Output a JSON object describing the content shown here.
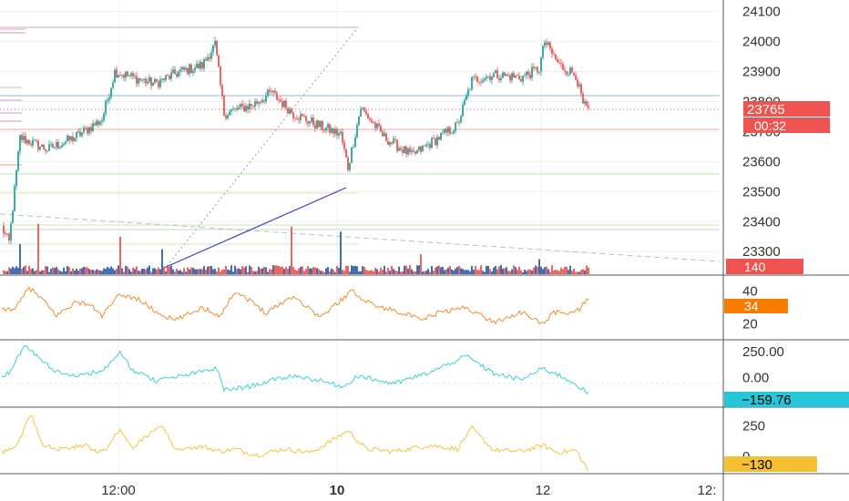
{
  "colors": {
    "up": "#26a69a",
    "down": "#ef5350",
    "vol_up": "#2f5ea8",
    "vol_down": "#ef5350",
    "rsi": "#f08c2e",
    "cci": "#3ccfd8",
    "osc3": "#f6c23e",
    "blue_line": "#3a3fc4",
    "badge_red": "#ef5350",
    "badge_orange": "#f57c00",
    "badge_cyan": "#26c6da",
    "badge_yellow": "#f4c032"
  },
  "chart_data": [
    {
      "type": "candlestick",
      "name": "price",
      "y_ticks": [
        "24100",
        "24000",
        "23900",
        "23800",
        "23700",
        "23600",
        "23500",
        "23400",
        "23300"
      ],
      "ylim": [
        23240,
        24120
      ],
      "x_ticks": [
        "12:00",
        "10",
        "12",
        "12:"
      ],
      "last_price_label": "23765",
      "countdown_label": "00:32",
      "price_path_anchors": [
        [
          0,
          23380
        ],
        [
          4,
          23330
        ],
        [
          10,
          23680
        ],
        [
          25,
          23640
        ],
        [
          40,
          23680
        ],
        [
          55,
          23740
        ],
        [
          62,
          23900
        ],
        [
          72,
          23880
        ],
        [
          84,
          23860
        ],
        [
          98,
          23900
        ],
        [
          110,
          23920
        ],
        [
          117,
          23990
        ],
        [
          122,
          23760
        ],
        [
          138,
          23790
        ],
        [
          148,
          23830
        ],
        [
          160,
          23760
        ],
        [
          174,
          23720
        ],
        [
          186,
          23690
        ],
        [
          190,
          23580
        ],
        [
          197,
          23780
        ],
        [
          210,
          23680
        ],
        [
          225,
          23620
        ],
        [
          240,
          23680
        ],
        [
          250,
          23720
        ],
        [
          258,
          23870
        ],
        [
          270,
          23890
        ],
        [
          285,
          23880
        ],
        [
          295,
          23910
        ],
        [
          298,
          24000
        ],
        [
          306,
          23920
        ],
        [
          315,
          23890
        ],
        [
          319,
          23790
        ],
        [
          322,
          23770
        ]
      ],
      "volume": {
        "label": "140",
        "spikes": [
          [
            10,
            0.6
          ],
          [
            20,
            1.0
          ],
          [
            65,
            0.75
          ],
          [
            88,
            0.5
          ],
          [
            159,
            0.95
          ],
          [
            186,
            0.85
          ],
          [
            230,
            0.4
          ],
          [
            295,
            0.3
          ]
        ]
      }
    },
    {
      "type": "line",
      "name": "rsi-pane",
      "y_ticks": [
        "40",
        "20"
      ],
      "ylim": [
        12,
        48
      ],
      "last_value_label": "34",
      "anchors": [
        [
          0,
          28
        ],
        [
          8,
          30
        ],
        [
          15,
          42
        ],
        [
          22,
          35
        ],
        [
          30,
          25
        ],
        [
          40,
          33
        ],
        [
          48,
          32
        ],
        [
          55,
          25
        ],
        [
          65,
          38
        ],
        [
          75,
          35
        ],
        [
          85,
          27
        ],
        [
          95,
          22
        ],
        [
          110,
          30
        ],
        [
          120,
          25
        ],
        [
          128,
          40
        ],
        [
          135,
          35
        ],
        [
          145,
          27
        ],
        [
          160,
          37
        ],
        [
          168,
          30
        ],
        [
          175,
          24
        ],
        [
          192,
          40
        ],
        [
          200,
          34
        ],
        [
          208,
          30
        ],
        [
          220,
          27
        ],
        [
          230,
          22
        ],
        [
          240,
          27
        ],
        [
          255,
          30
        ],
        [
          270,
          21
        ],
        [
          285,
          27
        ],
        [
          297,
          20
        ],
        [
          303,
          27
        ],
        [
          315,
          27
        ],
        [
          322,
          35
        ]
      ]
    },
    {
      "type": "line",
      "name": "cci-pane",
      "y_ticks": [
        "250.00",
        "0.00"
      ],
      "ylim": [
        -260,
        340
      ],
      "last_value_label": "−159.76",
      "anchors": [
        [
          0,
          0
        ],
        [
          5,
          60
        ],
        [
          12,
          310
        ],
        [
          18,
          230
        ],
        [
          28,
          70
        ],
        [
          40,
          20
        ],
        [
          55,
          60
        ],
        [
          65,
          240
        ],
        [
          72,
          70
        ],
        [
          85,
          -30
        ],
        [
          100,
          20
        ],
        [
          118,
          90
        ],
        [
          122,
          -120
        ],
        [
          135,
          -90
        ],
        [
          150,
          -20
        ],
        [
          160,
          20
        ],
        [
          175,
          -30
        ],
        [
          188,
          -90
        ],
        [
          195,
          20
        ],
        [
          215,
          -60
        ],
        [
          235,
          50
        ],
        [
          255,
          210
        ],
        [
          270,
          40
        ],
        [
          285,
          -20
        ],
        [
          297,
          90
        ],
        [
          305,
          30
        ],
        [
          315,
          -60
        ],
        [
          322,
          -160
        ]
      ]
    },
    {
      "type": "line",
      "name": "osc-pane",
      "y_ticks": [
        "250",
        "0"
      ],
      "ylim": [
        -120,
        380
      ],
      "last_value_label": "−130",
      "anchors": [
        [
          0,
          30
        ],
        [
          8,
          80
        ],
        [
          16,
          350
        ],
        [
          22,
          90
        ],
        [
          32,
          60
        ],
        [
          45,
          90
        ],
        [
          55,
          30
        ],
        [
          65,
          220
        ],
        [
          72,
          80
        ],
        [
          88,
          250
        ],
        [
          95,
          60
        ],
        [
          110,
          80
        ],
        [
          120,
          40
        ],
        [
          128,
          60
        ],
        [
          140,
          10
        ],
        [
          155,
          60
        ],
        [
          170,
          30
        ],
        [
          190,
          210
        ],
        [
          200,
          60
        ],
        [
          215,
          40
        ],
        [
          235,
          90
        ],
        [
          250,
          60
        ],
        [
          258,
          230
        ],
        [
          270,
          50
        ],
        [
          285,
          40
        ],
        [
          297,
          90
        ],
        [
          305,
          30
        ],
        [
          315,
          50
        ],
        [
          322,
          -120
        ]
      ]
    }
  ]
}
